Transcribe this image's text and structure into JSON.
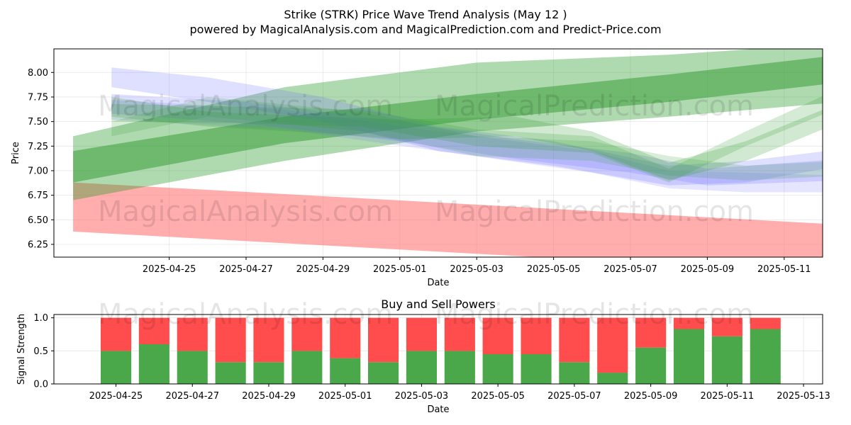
{
  "title_line1": "Strike (STRK) Price Wave Trend Analysis (May 12 )",
  "title_line2": "powered by MagicalAnalysis.com and MagicalPrediction.com and Predict-Price.com",
  "watermarks": [
    "MagicalAnalysis.com",
    "MagicalPrediction.com"
  ],
  "colors": {
    "green": "#2e9a2e",
    "blue": "#6f6fff",
    "red": "#ff6a6a",
    "bar_green": "#4aa84a",
    "bar_red": "#ff4d4d"
  },
  "chart_data": [
    {
      "type": "area",
      "title": "",
      "xlabel": "Date",
      "ylabel": "Price",
      "x_ticks": [
        "2025-04-25",
        "2025-04-27",
        "2025-04-29",
        "2025-05-01",
        "2025-05-03",
        "2025-05-05",
        "2025-05-07",
        "2025-05-09",
        "2025-05-11"
      ],
      "y_ticks": [
        "6.25",
        "6.50",
        "6.75",
        "7.00",
        "7.25",
        "7.50",
        "7.75",
        "8.00"
      ],
      "ylim": [
        6.12,
        8.24
      ],
      "xlim": [
        "2025-04-22",
        "2025-05-12"
      ],
      "grid": true,
      "bands": [
        {
          "color": "red",
          "opacity": 0.55,
          "upper": [
            [
              "2025-04-22T12:00",
              6.88
            ],
            [
              "2025-05-12T12:00",
              6.45
            ]
          ],
          "lower": [
            [
              "2025-04-22T12:00",
              6.38
            ],
            [
              "2025-05-12T12:00",
              5.95
            ]
          ]
        },
        {
          "color": "green",
          "opacity": 0.38,
          "upper": [
            [
              "2025-04-22T12:00",
              7.35
            ],
            [
              "2025-04-28",
              7.85
            ],
            [
              "2025-05-03",
              8.1
            ],
            [
              "2025-05-08",
              8.18
            ],
            [
              "2025-05-12T12:00",
              8.3
            ]
          ],
          "lower": [
            [
              "2025-04-22T12:00",
              6.7
            ],
            [
              "2025-04-28",
              7.1
            ],
            [
              "2025-05-03",
              7.4
            ],
            [
              "2025-05-08",
              7.55
            ],
            [
              "2025-05-12T12:00",
              7.7
            ]
          ]
        },
        {
          "color": "green",
          "opacity": 0.5,
          "upper": [
            [
              "2025-04-22T12:00",
              7.2
            ],
            [
              "2025-04-28",
              7.55
            ],
            [
              "2025-05-03",
              7.78
            ],
            [
              "2025-05-08",
              7.98
            ],
            [
              "2025-05-12T12:00",
              8.18
            ]
          ],
          "lower": [
            [
              "2025-04-22T12:00",
              6.88
            ],
            [
              "2025-04-28",
              7.28
            ],
            [
              "2025-05-03",
              7.52
            ],
            [
              "2025-05-08",
              7.7
            ],
            [
              "2025-05-12T12:00",
              7.9
            ]
          ]
        },
        {
          "color": "blue",
          "opacity": 0.22,
          "upper": [
            [
              "2025-04-23T12:00",
              8.05
            ],
            [
              "2025-04-26",
              7.95
            ],
            [
              "2025-04-29",
              7.75
            ],
            [
              "2025-05-02",
              7.45
            ],
            [
              "2025-05-05",
              7.3
            ],
            [
              "2025-05-08",
              7.05
            ],
            [
              "2025-05-10",
              7.1
            ],
            [
              "2025-05-12T12:00",
              7.22
            ]
          ],
          "lower": [
            [
              "2025-04-23T12:00",
              7.85
            ],
            [
              "2025-04-26",
              7.7
            ],
            [
              "2025-04-29",
              7.5
            ],
            [
              "2025-05-02",
              7.2
            ],
            [
              "2025-05-05",
              7.05
            ],
            [
              "2025-05-08",
              6.85
            ],
            [
              "2025-05-10",
              6.88
            ],
            [
              "2025-05-12T12:00",
              7.05
            ]
          ]
        },
        {
          "color": "blue",
          "opacity": 0.22,
          "upper": [
            [
              "2025-04-23T12:00",
              7.78
            ],
            [
              "2025-04-27",
              7.7
            ],
            [
              "2025-05-01",
              7.5
            ],
            [
              "2025-05-04",
              7.32
            ],
            [
              "2025-05-07",
              7.18
            ],
            [
              "2025-05-09",
              7.02
            ],
            [
              "2025-05-12T12:00",
              7.12
            ]
          ],
          "lower": [
            [
              "2025-04-23T12:00",
              7.58
            ],
            [
              "2025-04-27",
              7.48
            ],
            [
              "2025-05-01",
              7.3
            ],
            [
              "2025-05-04",
              7.12
            ],
            [
              "2025-05-07",
              6.98
            ],
            [
              "2025-05-09",
              6.85
            ],
            [
              "2025-05-12T12:00",
              6.9
            ]
          ]
        },
        {
          "color": "blue",
          "opacity": 0.18,
          "upper": [
            [
              "2025-04-23T12:00",
              7.72
            ],
            [
              "2025-04-28",
              7.62
            ],
            [
              "2025-05-02",
              7.4
            ],
            [
              "2025-05-06",
              7.2
            ],
            [
              "2025-05-08",
              7.0
            ],
            [
              "2025-05-10",
              6.98
            ],
            [
              "2025-05-12T12:00",
              6.95
            ]
          ],
          "lower": [
            [
              "2025-04-23T12:00",
              7.52
            ],
            [
              "2025-04-28",
              7.42
            ],
            [
              "2025-05-02",
              7.2
            ],
            [
              "2025-05-06",
              6.98
            ],
            [
              "2025-05-08",
              6.82
            ],
            [
              "2025-05-10",
              6.78
            ],
            [
              "2025-05-12T12:00",
              6.78
            ]
          ]
        },
        {
          "color": "green",
          "opacity": 0.22,
          "upper": [
            [
              "2025-04-23T12:00",
              7.75
            ],
            [
              "2025-04-26",
              7.6
            ],
            [
              "2025-04-29",
              7.55
            ],
            [
              "2025-05-01",
              7.52
            ],
            [
              "2025-05-04",
              7.55
            ],
            [
              "2025-05-06",
              7.4
            ],
            [
              "2025-05-08",
              7.08
            ],
            [
              "2025-05-10",
              7.3
            ],
            [
              "2025-05-12T12:00",
              7.7
            ]
          ],
          "lower": [
            [
              "2025-04-23T12:00",
              7.55
            ],
            [
              "2025-04-26",
              7.45
            ],
            [
              "2025-04-29",
              7.38
            ],
            [
              "2025-05-01",
              7.32
            ],
            [
              "2025-05-04",
              7.35
            ],
            [
              "2025-05-06",
              7.2
            ],
            [
              "2025-05-08",
              6.9
            ],
            [
              "2025-05-10",
              7.1
            ],
            [
              "2025-05-12T12:00",
              7.5
            ]
          ]
        },
        {
          "color": "green",
          "opacity": 0.18,
          "upper": [
            [
              "2025-04-23T12:00",
              7.5
            ],
            [
              "2025-04-26",
              7.75
            ],
            [
              "2025-04-30",
              7.6
            ],
            [
              "2025-05-03",
              7.35
            ],
            [
              "2025-05-06",
              7.3
            ],
            [
              "2025-05-08",
              7.15
            ],
            [
              "2025-05-10",
              7.05
            ],
            [
              "2025-05-12T12:00",
              7.1
            ]
          ],
          "lower": [
            [
              "2025-04-23T12:00",
              7.35
            ],
            [
              "2025-04-26",
              7.55
            ],
            [
              "2025-04-30",
              7.4
            ],
            [
              "2025-05-03",
              7.15
            ],
            [
              "2025-05-06",
              7.1
            ],
            [
              "2025-05-08",
              6.95
            ],
            [
              "2025-05-10",
              6.9
            ],
            [
              "2025-05-12T12:00",
              6.95
            ]
          ]
        },
        {
          "color": "green",
          "opacity": 0.2,
          "upper": [
            [
              "2025-04-23T12:00",
              7.68
            ],
            [
              "2025-04-27",
              7.65
            ],
            [
              "2025-04-30",
              7.62
            ],
            [
              "2025-05-03",
              7.42
            ],
            [
              "2025-05-06",
              7.35
            ],
            [
              "2025-05-08",
              7.02
            ],
            [
              "2025-05-10",
              7.4
            ],
            [
              "2025-05-12T12:00",
              7.85
            ]
          ],
          "lower": [
            [
              "2025-04-23T12:00",
              7.5
            ],
            [
              "2025-04-27",
              7.48
            ],
            [
              "2025-04-30",
              7.45
            ],
            [
              "2025-05-03",
              7.25
            ],
            [
              "2025-05-06",
              7.18
            ],
            [
              "2025-05-08",
              6.88
            ],
            [
              "2025-05-10",
              7.25
            ],
            [
              "2025-05-12T12:00",
              7.65
            ]
          ]
        }
      ]
    },
    {
      "type": "bar",
      "title": "Buy and Sell Powers",
      "xlabel": "Date",
      "ylabel": "Signal Strength",
      "x_ticks": [
        "2025-04-25",
        "2025-04-27",
        "2025-04-29",
        "2025-05-01",
        "2025-05-03",
        "2025-05-05",
        "2025-05-07",
        "2025-05-09",
        "2025-05-11",
        "2025-05-13"
      ],
      "y_ticks": [
        "0.0",
        "0.5",
        "1.0"
      ],
      "ylim": [
        0,
        1.05
      ],
      "xlim": [
        "2025-04-23T09:00",
        "2025-05-13T12:00"
      ],
      "grid": true,
      "categories": [
        "2025-04-25",
        "2025-04-26",
        "2025-04-27",
        "2025-04-28",
        "2025-04-29",
        "2025-04-30",
        "2025-05-01",
        "2025-05-02",
        "2025-05-03",
        "2025-05-04",
        "2025-05-05",
        "2025-05-06",
        "2025-05-07",
        "2025-05-08",
        "2025-05-09",
        "2025-05-10",
        "2025-05-11",
        "2025-05-12"
      ],
      "series": [
        {
          "name": "",
          "values": [
            0.5,
            0.6,
            0.5,
            0.33,
            0.33,
            0.5,
            0.39,
            0.33,
            0.5,
            0.5,
            0.45,
            0.45,
            0.33,
            0.17,
            0.55,
            0.83,
            0.72,
            0.83
          ]
        },
        {
          "name": "",
          "values": [
            0.5,
            0.4,
            0.5,
            0.67,
            0.67,
            0.5,
            0.61,
            0.67,
            0.5,
            0.5,
            0.55,
            0.55,
            0.67,
            0.83,
            0.45,
            0.17,
            0.28,
            0.17
          ]
        }
      ]
    }
  ]
}
